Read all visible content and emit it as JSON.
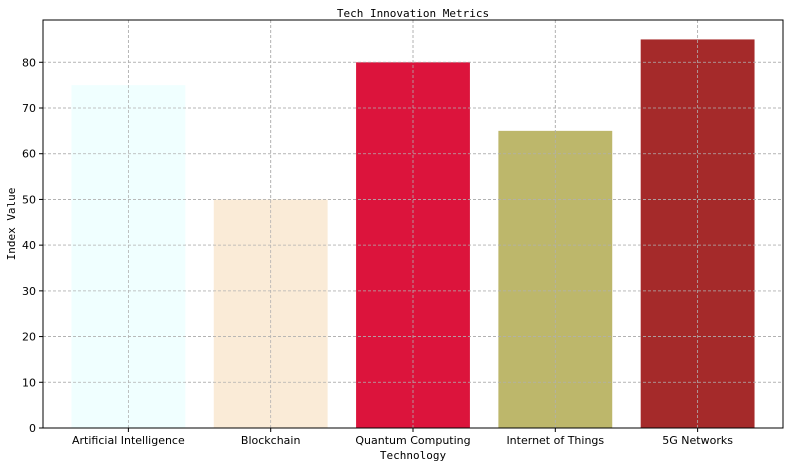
{
  "chart_data": {
    "type": "bar",
    "title": "Tech Innovation Metrics",
    "xlabel": "Technology",
    "ylabel": "Index Value",
    "categories": [
      "Artificial Intelligence",
      "Blockchain",
      "Quantum Computing",
      "Internet of Things",
      "5G Networks"
    ],
    "values": [
      75,
      50,
      80,
      65,
      85
    ],
    "colors": [
      "#f0ffff",
      "#faebd7",
      "#dc143c",
      "#bdb76b",
      "#a52a2a"
    ],
    "ylim": [
      0,
      89.25
    ],
    "yticks": [
      0,
      10,
      20,
      30,
      40,
      50,
      60,
      70,
      80
    ],
    "grid": true
  }
}
